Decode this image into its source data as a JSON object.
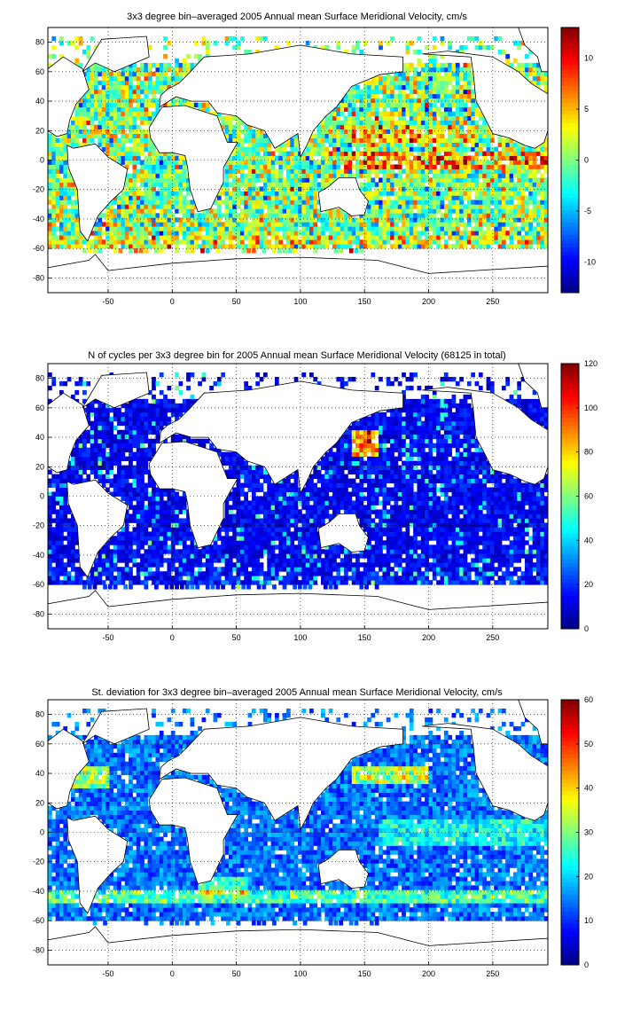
{
  "figure": {
    "panels": [
      {
        "title": "3x3 degree bin–averaged 2005 Annual mean Surface Meridional Velocity, cm/s",
        "colorbar_ticks": [
          "-10",
          "-5",
          "0",
          "5",
          "10"
        ]
      },
      {
        "title": "N of cycles per 3x3 degree bin for 2005 Annual mean Surface Meridional Velocity (68125 in total)",
        "colorbar_ticks": [
          "0",
          "20",
          "40",
          "60",
          "80",
          "100",
          "120"
        ]
      },
      {
        "title": "St. deviation for 3x3 degree bin–averaged 2005 Annual mean Surface Meridional Velocity, cm/s",
        "colorbar_ticks": [
          "0",
          "10",
          "20",
          "30",
          "40",
          "50",
          "60"
        ]
      }
    ]
  },
  "chart_data": [
    {
      "type": "heatmap",
      "title": "3x3 degree bin–averaged 2005 Annual mean Surface Meridional Velocity, cm/s",
      "colormap": "jet",
      "xlim": [
        -97,
        293
      ],
      "ylim": [
        -90,
        90
      ],
      "bin_size_deg": 3,
      "xticks": [
        -50,
        0,
        50,
        100,
        150,
        200,
        250
      ],
      "yticks": [
        -80,
        -60,
        -40,
        -20,
        0,
        20,
        40,
        60,
        80
      ],
      "colorbar": {
        "min": -13,
        "max": 13,
        "ticks": [
          -10,
          -5,
          0,
          5,
          10
        ]
      },
      "grid": true
    },
    {
      "type": "heatmap",
      "title": "N of cycles per 3x3 degree bin for 2005 Annual mean Surface Meridional Velocity (68125 in total)",
      "colormap": "jet",
      "xlim": [
        -97,
        293
      ],
      "ylim": [
        -90,
        90
      ],
      "bin_size_deg": 3,
      "xticks": [
        -50,
        0,
        50,
        100,
        150,
        200,
        250
      ],
      "yticks": [
        -80,
        -60,
        -40,
        -20,
        0,
        20,
        40,
        60,
        80
      ],
      "colorbar": {
        "min": 0,
        "max": 120,
        "ticks": [
          0,
          20,
          40,
          60,
          80,
          100,
          120
        ]
      },
      "total": 68125,
      "grid": true
    },
    {
      "type": "heatmap",
      "title": "St. deviation for 3x3 degree bin–averaged 2005 Annual mean Surface Meridional Velocity, cm/s",
      "colormap": "jet",
      "xlim": [
        -97,
        293
      ],
      "ylim": [
        -90,
        90
      ],
      "bin_size_deg": 3,
      "xticks": [
        -50,
        0,
        50,
        100,
        150,
        200,
        250
      ],
      "yticks": [
        -80,
        -60,
        -40,
        -20,
        0,
        20,
        40,
        60,
        80
      ],
      "colorbar": {
        "min": 0,
        "max": 60,
        "ticks": [
          0,
          10,
          20,
          30,
          40,
          50,
          60
        ]
      },
      "grid": true
    }
  ]
}
